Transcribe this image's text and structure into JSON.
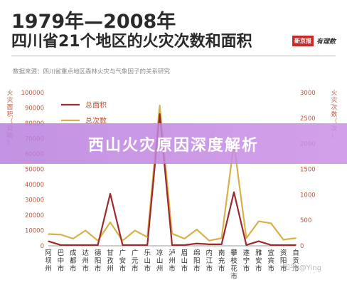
{
  "header": {
    "title_line1": "1979年—2008年",
    "title_line2": "四川省21个地区的火灾次数和面积",
    "source": "数据来源：四川省重点地区森林火灾与气象因子的关系研究",
    "logo_left": "新京报",
    "logo_right": "有理数"
  },
  "banner": {
    "text": "西山火灾原因深度解析"
  },
  "watermark": "知乎 @Ying",
  "colors": {
    "area_line": "#9b2a2f",
    "count_line": "#d8b14a",
    "axis_text": "#c0563a",
    "tick_text": "#b9583e"
  },
  "chart_data": {
    "type": "line",
    "categories": [
      "阿坝州",
      "巴中市",
      "成都市",
      "达州市",
      "德阳市",
      "甘孜州",
      "广安市",
      "广元市",
      "乐山市",
      "凉山州",
      "泸州市",
      "眉山市",
      "绵阳市",
      "内江市",
      "南充市",
      "攀枝花市",
      "遂宁市",
      "雅安市",
      "宜宾市",
      "资阳市",
      "自贡市"
    ],
    "series": [
      {
        "name": "总面积",
        "axis": "left",
        "values": [
          3000,
          500,
          500,
          500,
          500,
          34000,
          500,
          500,
          500,
          86000,
          500,
          500,
          1500,
          1000,
          1000,
          35000,
          500,
          3000,
          500,
          500,
          500
        ]
      },
      {
        "name": "总次数",
        "axis": "right",
        "values": [
          230,
          220,
          140,
          300,
          100,
          460,
          100,
          300,
          170,
          2750,
          240,
          140,
          320,
          100,
          150,
          2000,
          150,
          480,
          440,
          120,
          150
        ]
      }
    ],
    "y_left": {
      "label": "火灾面积（公顷）",
      "ylim": [
        0,
        100000
      ],
      "ticks": [
        "0",
        "10000",
        "20000",
        "30000",
        "40000",
        "50000",
        "60000",
        "70000",
        "80000",
        "90000",
        "100000"
      ]
    },
    "y_right": {
      "label": "火灾次数（次）",
      "ylim": [
        0,
        3000
      ],
      "ticks": [
        "0",
        "500",
        "1000",
        "1500",
        "2000",
        "2500",
        "3000"
      ]
    },
    "legend_placement": "top-left",
    "grid": false
  }
}
